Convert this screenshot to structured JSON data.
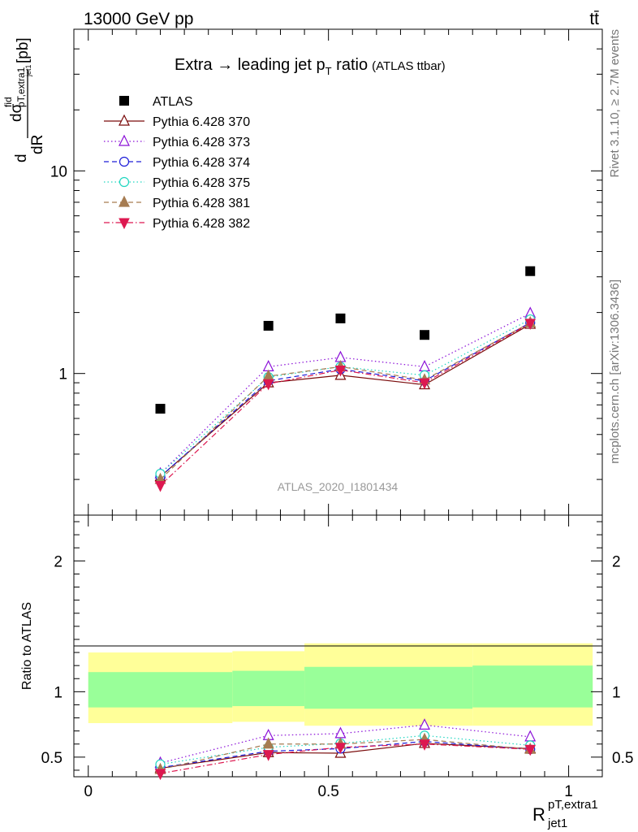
{
  "header": {
    "energy": "13000 GeV pp",
    "process": "tt̄"
  },
  "side_labels": {
    "rivet": "Rivet 3.1.10, ≥ 2.7M events",
    "mcplots": "mcplots.cern.ch [arXiv:1306.3436]"
  },
  "analysis_id": "ATLAS_2020_I1801434",
  "chart_data": [
    {
      "type": "scatter",
      "panel": "main",
      "title": "Extra → leading jet p_T ratio (ATLAS ttbar)",
      "title_parts": {
        "main": "Extra → leading jet p",
        "sub": "T",
        "after": " ratio",
        "small": "(ATLAS ttbar)"
      },
      "ylabel": "dσ^fid / dR [pb]",
      "ylabel_parts": {
        "d1": "d",
        "sigma": "dσ",
        "fid": "fid",
        "dR": "dR",
        "sub": "pT,extra1",
        "subsub": "jet1",
        "unit": "[pb]"
      },
      "yscale": "log",
      "ylim": [
        0.2,
        50
      ],
      "xlim": [
        -0.03,
        1.07
      ],
      "ytick_labels": [
        "1",
        "10"
      ],
      "x": [
        0.15,
        0.375,
        0.525,
        0.7,
        0.92
      ],
      "series": [
        {
          "name": "ATLAS",
          "color": "#000000",
          "marker": "square",
          "line": "none",
          "values": [
            0.67,
            1.72,
            1.87,
            1.55,
            3.2
          ]
        },
        {
          "name": "Pythia 6.428 370",
          "color": "#7a0b0b",
          "marker": "triangle-open",
          "line": "solid",
          "values": [
            0.31,
            0.9,
            0.98,
            0.88,
            1.75
          ]
        },
        {
          "name": "Pythia 6.428 373",
          "color": "#8b10d8",
          "marker": "triangle-open",
          "line": "dotted",
          "values": [
            0.32,
            1.08,
            1.2,
            1.08,
            1.98
          ]
        },
        {
          "name": "Pythia 6.428 374",
          "color": "#1d1dd8",
          "marker": "circle-open",
          "line": "dashed",
          "values": [
            0.31,
            0.92,
            1.05,
            0.92,
            1.78
          ]
        },
        {
          "name": "Pythia 6.428 375",
          "color": "#20d6c0",
          "marker": "circle-open",
          "line": "dotted",
          "values": [
            0.32,
            0.96,
            1.08,
            0.98,
            1.85
          ]
        },
        {
          "name": "Pythia 6.428 381",
          "color": "#a67c52",
          "marker": "triangle-filled",
          "line": "dashed",
          "values": [
            0.3,
            0.97,
            1.08,
            0.93,
            1.78
          ]
        },
        {
          "name": "Pythia 6.428 382",
          "color": "#dd1850",
          "marker": "triangledown-filled",
          "line": "dashdot",
          "values": [
            0.28,
            0.89,
            1.04,
            0.9,
            1.77
          ]
        }
      ]
    },
    {
      "type": "scatter",
      "panel": "ratio",
      "ylabel": "Ratio to ATLAS",
      "xlabel": "R^{pT,extra1}_{jet1}",
      "xlabel_parts": {
        "base": "R",
        "sup": "pT,extra1",
        "sub": "jet1"
      },
      "ylim": [
        0.35,
        2.35
      ],
      "xlim": [
        -0.03,
        1.07
      ],
      "xtick_labels": [
        "0",
        "0.5",
        "1"
      ],
      "ytick_labels": [
        "0.5",
        "1",
        "2"
      ],
      "bands": [
        {
          "x_edges": [
            0.0,
            0.3
          ],
          "inner": [
            0.88,
            1.15
          ],
          "outer": [
            0.76,
            1.3
          ]
        },
        {
          "x_edges": [
            0.3,
            0.45
          ],
          "inner": [
            0.89,
            1.16
          ],
          "outer": [
            0.77,
            1.31
          ]
        },
        {
          "x_edges": [
            0.45,
            0.8
          ],
          "inner": [
            0.87,
            1.19
          ],
          "outer": [
            0.74,
            1.37
          ]
        },
        {
          "x_edges": [
            0.8,
            1.05
          ],
          "inner": [
            0.88,
            1.2
          ],
          "outer": [
            0.74,
            1.37
          ]
        }
      ],
      "band_colors": {
        "outer": "#ffff99",
        "inner": "#99ff99"
      },
      "x": [
        0.15,
        0.375,
        0.525,
        0.7,
        0.92
      ],
      "series": [
        {
          "name": "Pythia 6.428 370",
          "values": [
            0.415,
            0.535,
            0.53,
            0.605,
            0.565
          ]
        },
        {
          "name": "Pythia 6.428 373",
          "values": [
            0.455,
            0.665,
            0.68,
            0.745,
            0.655
          ]
        },
        {
          "name": "Pythia 6.428 374",
          "values": [
            0.42,
            0.545,
            0.565,
            0.62,
            0.56
          ]
        },
        {
          "name": "Pythia 6.428 375",
          "values": [
            0.445,
            0.575,
            0.605,
            0.665,
            0.59
          ]
        },
        {
          "name": "Pythia 6.428 381",
          "values": [
            0.405,
            0.6,
            0.6,
            0.635,
            0.56
          ]
        },
        {
          "name": "Pythia 6.428 382",
          "values": [
            0.375,
            0.52,
            0.575,
            0.6,
            0.56
          ]
        }
      ]
    }
  ]
}
